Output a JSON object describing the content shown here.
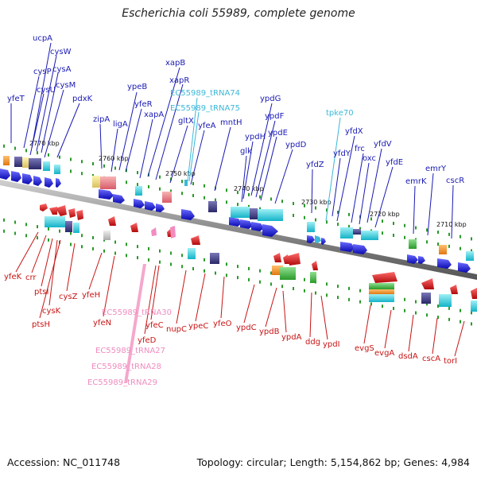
{
  "title": "Escherichia coli 55989, complete genome",
  "footer": {
    "accession": "Accession: NC_011748",
    "summary": "Topology: circular; Length: 5,154,862 bp; Genes: 4,984"
  },
  "colors": {
    "forward_label": "#1a1ab4",
    "reverse_label": "#c81414",
    "trna_forward_label": "#3cb8d8",
    "trna_reverse_label": "#f08cc0",
    "forward_gene": "#1414dc",
    "reverse_gene": "#dc1414",
    "backbone": "#8a8a8a",
    "tick": "#2a9a2a"
  },
  "kbp_ticks": [
    "2770 kbp",
    "2760 kbp",
    "2750 kbp",
    "2740 kbp",
    "2730 kbp",
    "2720 kbp",
    "2710 kbp"
  ],
  "forward_labels": [
    "ucpA",
    "cysW",
    "cysA",
    "cysP",
    "cysU",
    "cysM",
    "yfeT",
    "pdxK",
    "ypeB",
    "zipA",
    "ligA",
    "yfeR",
    "xapB",
    "xapR",
    "xapA",
    "gltX",
    "yfeA",
    "mntH",
    "ypdG",
    "ypdH",
    "ypdF",
    "ypdE",
    "glk",
    "ypdD",
    "yfdZ",
    "yfdY",
    "yfdX",
    "frc",
    "oxc",
    "yfdV",
    "yfdE",
    "emrK",
    "emrY",
    "cscR"
  ],
  "forward_trna_labels": [
    "EC55989_tRNA74",
    "EC55989_tRNA75",
    "tpke70"
  ],
  "reverse_labels": [
    "yfeK",
    "crr",
    "ptsI",
    "cysK",
    "ptsH",
    "cysZ",
    "yfeH",
    "yfeN",
    "yfeC",
    "yfeD",
    "nupC",
    "ypeC",
    "yfeO",
    "ypdC",
    "ypdB",
    "ypdA",
    "ddg",
    "ypdI",
    "evgS",
    "evgA",
    "dsdA",
    "cscA",
    "torI"
  ],
  "reverse_trna_labels": [
    "EC55989_tRNA30",
    "EC55989_tRNA27",
    "EC55989_tRNA28",
    "EC55989_tRNA29"
  ]
}
